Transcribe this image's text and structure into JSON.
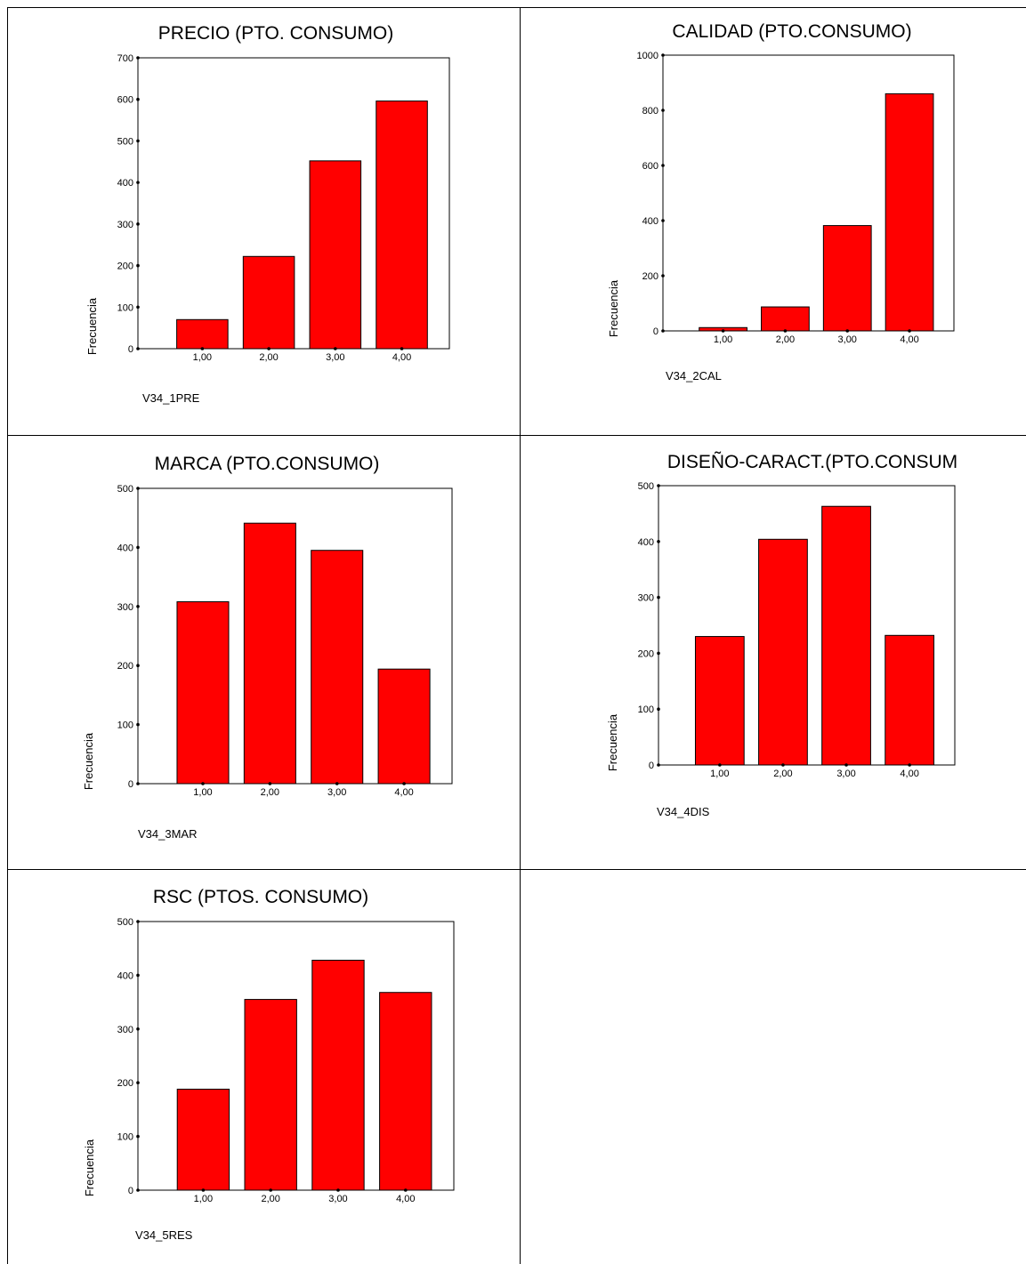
{
  "chart_data": [
    {
      "type": "bar",
      "title": "PRECIO (PTO. CONSUMO)",
      "ylabel": "Frecuencia",
      "variable": "V34_1PRE",
      "categories": [
        "1,00",
        "2,00",
        "3,00",
        "4,00"
      ],
      "values": [
        70,
        222,
        452,
        596
      ],
      "ylim": [
        0,
        700
      ],
      "yticks": [
        "0",
        "100",
        "200",
        "300",
        "400",
        "500",
        "600",
        "700"
      ],
      "bar_color": "#FF0000"
    },
    {
      "type": "bar",
      "title": "CALIDAD (PTO.CONSUMO)",
      "ylabel": "Frecuencia",
      "variable": "V34_2CAL",
      "categories": [
        "1,00",
        "2,00",
        "3,00",
        "4,00"
      ],
      "values": [
        12,
        87,
        382,
        860
      ],
      "ylim": [
        0,
        1000
      ],
      "yticks": [
        "0",
        "200",
        "400",
        "600",
        "800",
        "1000"
      ],
      "bar_color": "#FF0000"
    },
    {
      "type": "bar",
      "title": "MARCA (PTO.CONSUMO)",
      "ylabel": "Frecuencia",
      "variable": "V34_3MAR",
      "categories": [
        "1,00",
        "2,00",
        "3,00",
        "4,00"
      ],
      "values": [
        308,
        441,
        395,
        194
      ],
      "ylim": [
        0,
        500
      ],
      "yticks": [
        "0",
        "100",
        "200",
        "300",
        "400",
        "500"
      ],
      "bar_color": "#FF0000"
    },
    {
      "type": "bar",
      "title": "DISEÑO-CARACT.(PTO.CONSUM",
      "ylabel": "Frecuencia",
      "variable": "V34_4DIS",
      "categories": [
        "1,00",
        "2,00",
        "3,00",
        "4,00"
      ],
      "values": [
        230,
        404,
        463,
        232
      ],
      "ylim": [
        0,
        500
      ],
      "yticks": [
        "0",
        "100",
        "200",
        "300",
        "400",
        "500"
      ],
      "bar_color": "#FF0000"
    },
    {
      "type": "bar",
      "title": "RSC (PTOS. CONSUMO)",
      "ylabel": "Frecuencia",
      "variable": "V34_5RES",
      "categories": [
        "1,00",
        "2,00",
        "3,00",
        "4,00"
      ],
      "values": [
        188,
        355,
        428,
        368
      ],
      "ylim": [
        0,
        500
      ],
      "yticks": [
        "0",
        "100",
        "200",
        "300",
        "400",
        "500"
      ],
      "bar_color": "#FF0000"
    }
  ]
}
